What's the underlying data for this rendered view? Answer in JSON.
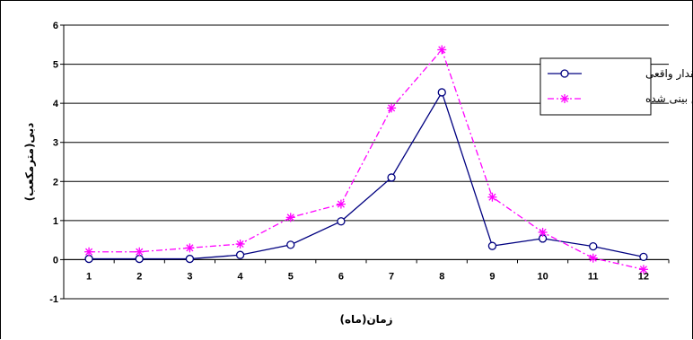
{
  "chart_data": {
    "type": "line",
    "title": "",
    "xlabel": "زمان(ماه)",
    "ylabel": "دبی(مترمکعب)",
    "x": [
      1,
      2,
      3,
      4,
      5,
      6,
      7,
      8,
      9,
      10,
      11,
      12
    ],
    "xticks": [
      "1",
      "2",
      "3",
      "4",
      "5",
      "6",
      "7",
      "8",
      "9",
      "10",
      "11",
      "12"
    ],
    "yticks": [
      "-1",
      "0",
      "1",
      "2",
      "3",
      "4",
      "5",
      "6"
    ],
    "ylim": [
      -1,
      6
    ],
    "grid": "horizontal",
    "legend_position": "top-right",
    "series": [
      {
        "name": "مقدار واقعی",
        "color": "#000080",
        "marker": "circle",
        "line_style": "solid",
        "values": [
          0.02,
          0.02,
          0.02,
          0.12,
          0.38,
          0.98,
          2.1,
          4.28,
          0.35,
          0.54,
          0.34,
          0.07
        ]
      },
      {
        "name": "پیش بینی شده",
        "color": "#FF00FF",
        "marker": "asterisk",
        "line_style": "dash-dot",
        "values": [
          0.2,
          0.2,
          0.3,
          0.4,
          1.08,
          1.42,
          3.88,
          5.37,
          1.6,
          0.7,
          0.04,
          -0.25
        ]
      }
    ]
  }
}
